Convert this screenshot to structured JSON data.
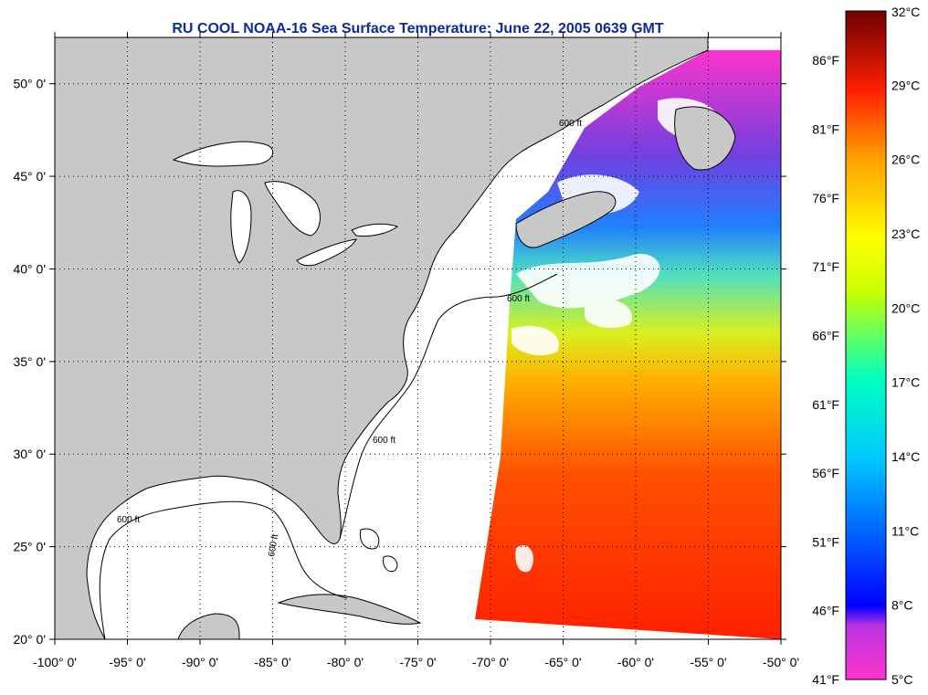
{
  "title": "RU COOL  NOAA-16  Sea Surface Temperature:  June 22, 2005 0639 GMT",
  "map": {
    "lon_range": [
      -100,
      -50
    ],
    "lat_range": [
      20,
      52.5
    ],
    "x_ticks": [
      {
        "value": -100,
        "label": "-100° 0'"
      },
      {
        "value": -95,
        "label": "-95° 0'"
      },
      {
        "value": -90,
        "label": "-90° 0'"
      },
      {
        "value": -85,
        "label": "-85° 0'"
      },
      {
        "value": -80,
        "label": "-80° 0'"
      },
      {
        "value": -75,
        "label": "-75° 0'"
      },
      {
        "value": -70,
        "label": "-70° 0'"
      },
      {
        "value": -65,
        "label": "-65° 0'"
      },
      {
        "value": -60,
        "label": "-60° 0'"
      },
      {
        "value": -55,
        "label": "-55° 0'"
      },
      {
        "value": -50,
        "label": "-50° 0'"
      }
    ],
    "y_ticks": [
      {
        "value": 20,
        "label": "20° 0'"
      },
      {
        "value": 25,
        "label": "25° 0'"
      },
      {
        "value": 30,
        "label": "30° 0'"
      },
      {
        "value": 35,
        "label": "35° 0'"
      },
      {
        "value": 40,
        "label": "40° 0'"
      },
      {
        "value": 45,
        "label": "45° 0'"
      },
      {
        "value": 50,
        "label": "50° 0'"
      }
    ],
    "grid": true,
    "contour_label": "600 ft",
    "land_color": "#c8c8c8",
    "ocean_nodata_color": "#ffffff"
  },
  "colorbar": {
    "celsius": [
      {
        "value": 32,
        "label": "32°C"
      },
      {
        "value": 29,
        "label": "29°C"
      },
      {
        "value": 26,
        "label": "26°C"
      },
      {
        "value": 23,
        "label": "23°C"
      },
      {
        "value": 20,
        "label": "20°C"
      },
      {
        "value": 17,
        "label": "17°C"
      },
      {
        "value": 14,
        "label": "14°C"
      },
      {
        "value": 11,
        "label": "11°C"
      },
      {
        "value": 8,
        "label": "8°C"
      },
      {
        "value": 5,
        "label": "5°C"
      }
    ],
    "fahrenheit": [
      {
        "value": 86,
        "label": "86°F"
      },
      {
        "value": 81,
        "label": "81°F"
      },
      {
        "value": 76,
        "label": "76°F"
      },
      {
        "value": 71,
        "label": "71°F"
      },
      {
        "value": 66,
        "label": "66°F"
      },
      {
        "value": 61,
        "label": "61°F"
      },
      {
        "value": 56,
        "label": "56°F"
      },
      {
        "value": 51,
        "label": "51°F"
      },
      {
        "value": 46,
        "label": "46°F"
      },
      {
        "value": 41,
        "label": "41°F"
      }
    ],
    "colors": [
      "#ff33cc",
      "#7b2fbf",
      "#0000ff",
      "#00c8ff",
      "#00ffc0",
      "#c8ff00",
      "#ffff00",
      "#ffa000",
      "#ff2000",
      "#b00000",
      "#700000"
    ]
  }
}
